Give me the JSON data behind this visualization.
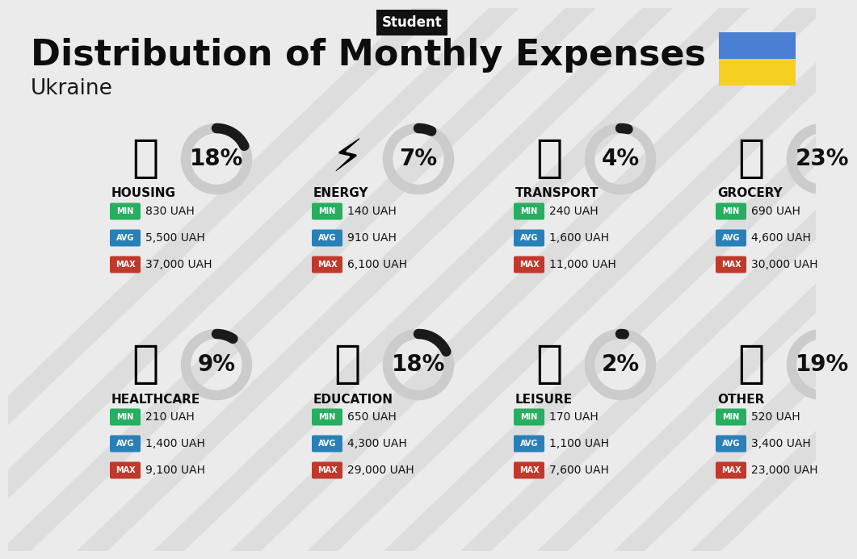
{
  "title": "Distribution of Monthly Expenses",
  "subtitle": "Student",
  "country": "Ukraine",
  "bg_color": "#ebebeb",
  "ukraine_blue": "#4a7fd4",
  "ukraine_yellow": "#f5d020",
  "categories": [
    {
      "name": "HOUSING",
      "pct": 18,
      "min": "830 UAH",
      "avg": "5,500 UAH",
      "max": "37,000 UAH",
      "row": 0,
      "col": 0
    },
    {
      "name": "ENERGY",
      "pct": 7,
      "min": "140 UAH",
      "avg": "910 UAH",
      "max": "6,100 UAH",
      "row": 0,
      "col": 1
    },
    {
      "name": "TRANSPORT",
      "pct": 4,
      "min": "240 UAH",
      "avg": "1,600 UAH",
      "max": "11,000 UAH",
      "row": 0,
      "col": 2
    },
    {
      "name": "GROCERY",
      "pct": 23,
      "min": "690 UAH",
      "avg": "4,600 UAH",
      "max": "30,000 UAH",
      "row": 0,
      "col": 3
    },
    {
      "name": "HEALTHCARE",
      "pct": 9,
      "min": "210 UAH",
      "avg": "1,400 UAH",
      "max": "9,100 UAH",
      "row": 1,
      "col": 0
    },
    {
      "name": "EDUCATION",
      "pct": 18,
      "min": "650 UAH",
      "avg": "4,300 UAH",
      "max": "29,000 UAH",
      "row": 1,
      "col": 1
    },
    {
      "name": "LEISURE",
      "pct": 2,
      "min": "170 UAH",
      "avg": "1,100 UAH",
      "max": "7,600 UAH",
      "row": 1,
      "col": 2
    },
    {
      "name": "OTHER",
      "pct": 19,
      "min": "520 UAH",
      "avg": "3,400 UAH",
      "max": "23,000 UAH",
      "row": 1,
      "col": 3
    }
  ],
  "min_color": "#27ae60",
  "avg_color": "#2980b9",
  "max_color": "#c0392b",
  "stripe_color": "#d8d8d8",
  "stripe_alpha": 0.7,
  "circle_bg": "#cccccc",
  "circle_fg": "#1a1a1a",
  "pct_fontsize": 20,
  "name_fontsize": 11,
  "val_fontsize": 10,
  "tag_fontsize": 7
}
